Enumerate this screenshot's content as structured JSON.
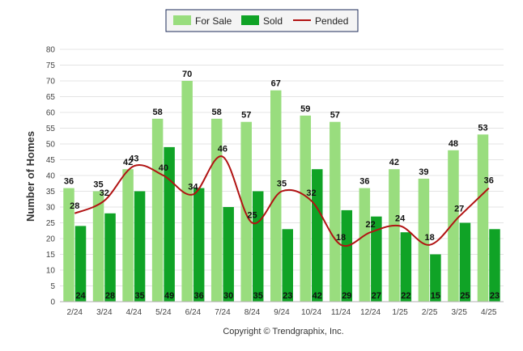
{
  "chart_data": {
    "type": "bar",
    "categories": [
      "2/24",
      "3/24",
      "4/24",
      "5/24",
      "6/24",
      "7/24",
      "8/24",
      "9/24",
      "10/24",
      "11/24",
      "12/24",
      "1/25",
      "2/25",
      "3/25",
      "4/25"
    ],
    "series": [
      {
        "name": "For Sale",
        "type": "bar",
        "color": "#99dd7e",
        "values": [
          36,
          35,
          42,
          58,
          70,
          58,
          57,
          67,
          59,
          57,
          36,
          42,
          39,
          48,
          53
        ]
      },
      {
        "name": "Sold",
        "type": "bar",
        "color": "#10a326",
        "values": [
          24,
          28,
          35,
          49,
          36,
          30,
          35,
          23,
          42,
          29,
          27,
          22,
          15,
          25,
          23
        ]
      },
      {
        "name": "Pended",
        "type": "line",
        "color": "#b11313",
        "values": [
          28,
          32,
          43,
          40,
          34,
          46,
          25,
          35,
          32,
          18,
          22,
          24,
          18,
          27,
          36
        ]
      }
    ],
    "ylabel": "Number of Homes",
    "ylim": [
      0,
      80
    ],
    "ytick_step": 5,
    "grid": true,
    "legend_placement": "top-center",
    "credit": "Copyright © Trendgraphix, Inc."
  }
}
